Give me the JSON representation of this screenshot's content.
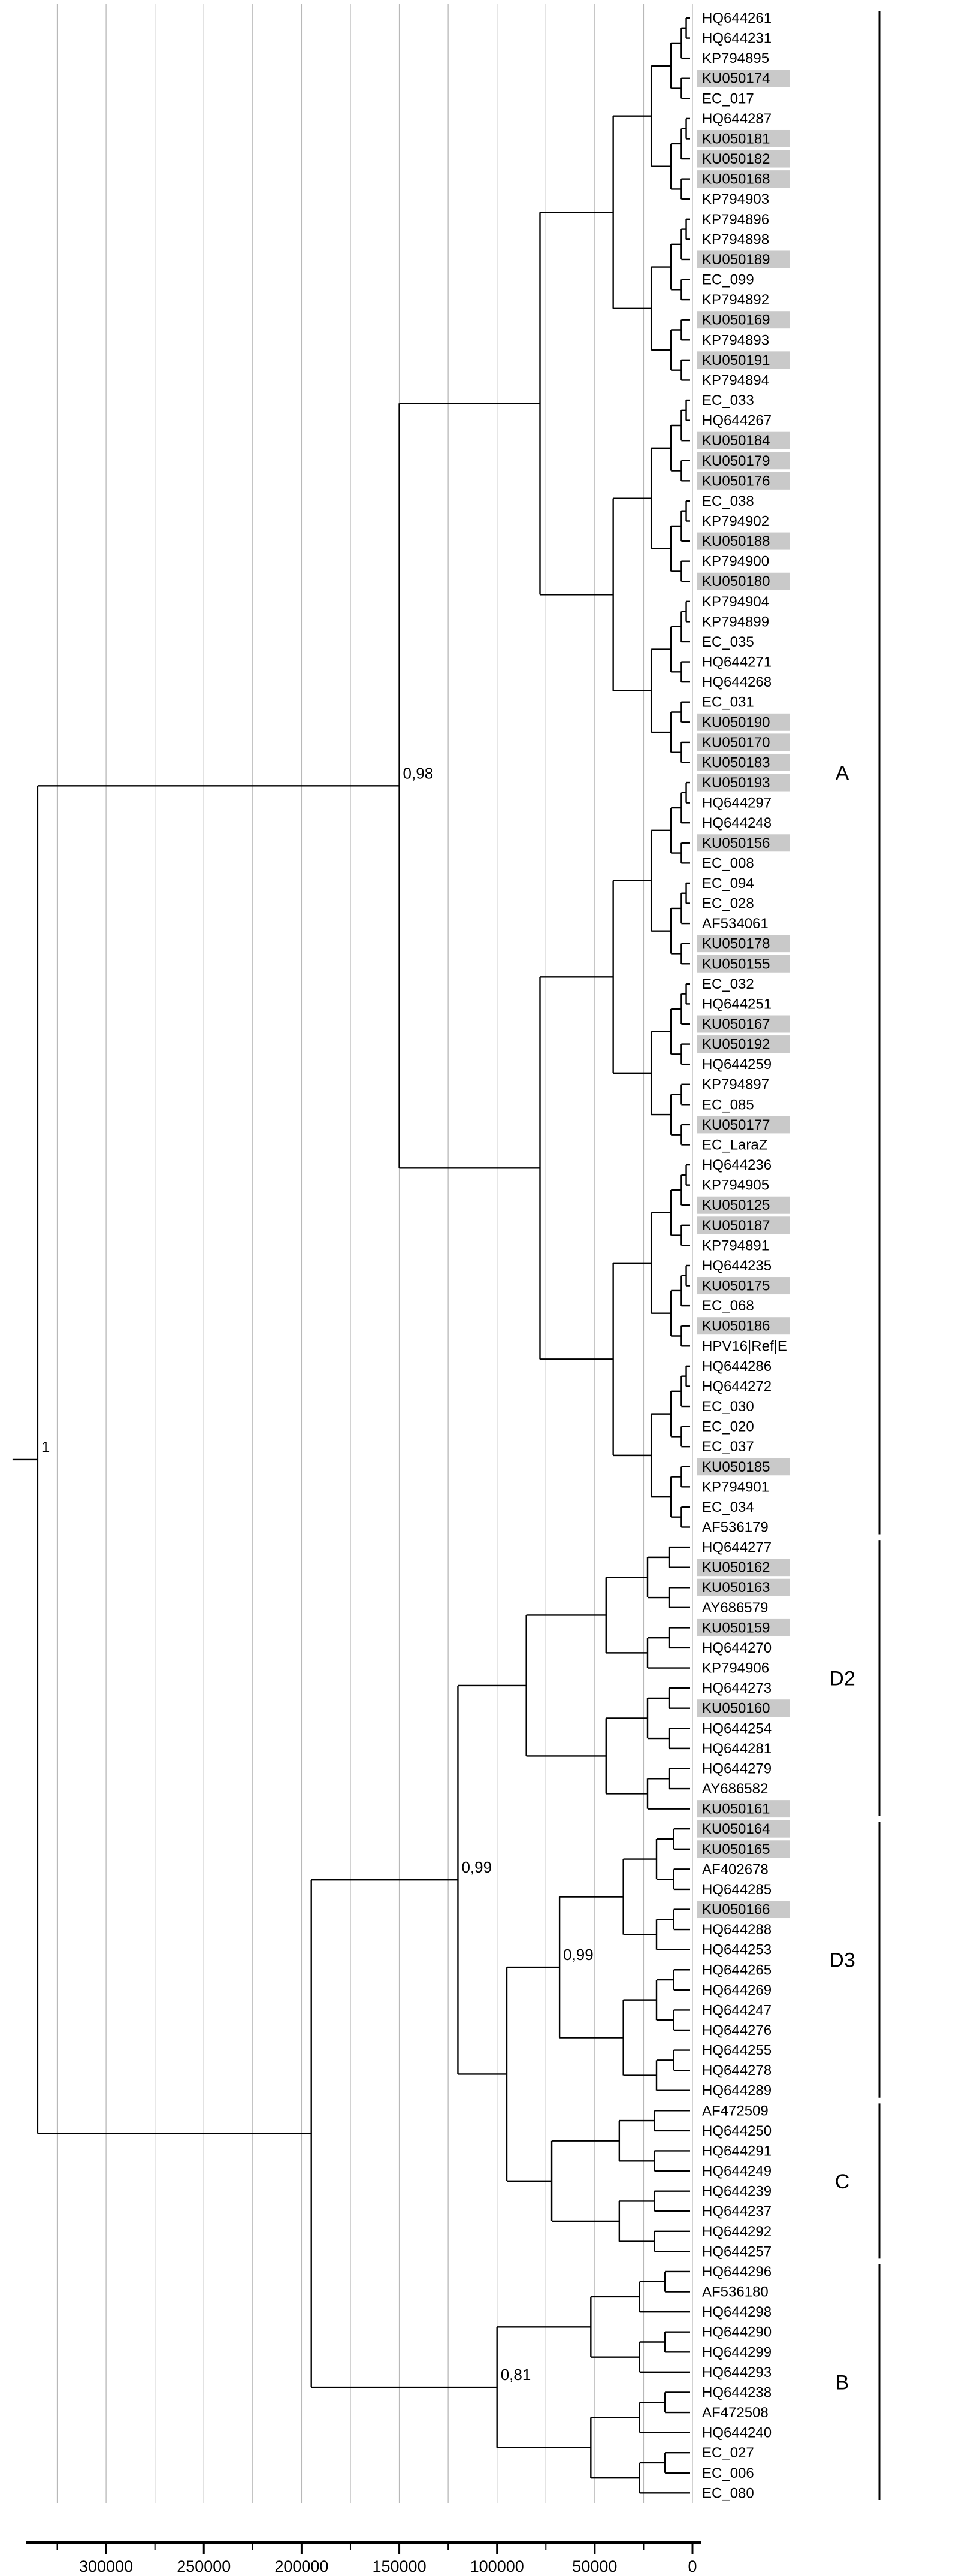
{
  "figure": {
    "type": "phylogenetic_tree",
    "description": "UPGMA/NJ style dendrogram of HPV16 variant sequences with clade groups",
    "colors": {
      "branch": "#000000",
      "gridline": "#b8b8b8",
      "highlight": "#c9c9c9",
      "bracket": "#000000"
    }
  },
  "taxa": [
    {
      "label": "HQ644261",
      "hl": false
    },
    {
      "label": "HQ644231",
      "hl": false
    },
    {
      "label": "KP794895",
      "hl": false
    },
    {
      "label": "KU050174",
      "hl": true
    },
    {
      "label": "EC_017",
      "hl": false
    },
    {
      "label": "HQ644287",
      "hl": false
    },
    {
      "label": "KU050181",
      "hl": true
    },
    {
      "label": "KU050182",
      "hl": true
    },
    {
      "label": "KU050168",
      "hl": true
    },
    {
      "label": "KP794903",
      "hl": false
    },
    {
      "label": "KP794896",
      "hl": false
    },
    {
      "label": "KP794898",
      "hl": false
    },
    {
      "label": "KU050189",
      "hl": true
    },
    {
      "label": "EC_099",
      "hl": false
    },
    {
      "label": "KP794892",
      "hl": false
    },
    {
      "label": "KU050169",
      "hl": true
    },
    {
      "label": "KP794893",
      "hl": false
    },
    {
      "label": "KU050191",
      "hl": true
    },
    {
      "label": "KP794894",
      "hl": false
    },
    {
      "label": "EC_033",
      "hl": false
    },
    {
      "label": "HQ644267",
      "hl": false
    },
    {
      "label": "KU050184",
      "hl": true
    },
    {
      "label": "KU050179",
      "hl": true
    },
    {
      "label": "KU050176",
      "hl": true
    },
    {
      "label": "EC_038",
      "hl": false
    },
    {
      "label": "KP794902",
      "hl": false
    },
    {
      "label": "KU050188",
      "hl": true
    },
    {
      "label": "KP794900",
      "hl": false
    },
    {
      "label": "KU050180",
      "hl": true
    },
    {
      "label": "KP794904",
      "hl": false
    },
    {
      "label": "KP794899",
      "hl": false
    },
    {
      "label": "EC_035",
      "hl": false
    },
    {
      "label": "HQ644271",
      "hl": false
    },
    {
      "label": "HQ644268",
      "hl": false
    },
    {
      "label": "EC_031",
      "hl": false
    },
    {
      "label": "KU050190",
      "hl": true
    },
    {
      "label": "KU050170",
      "hl": true
    },
    {
      "label": "KU050183",
      "hl": true
    },
    {
      "label": "KU050193",
      "hl": true
    },
    {
      "label": "HQ644297",
      "hl": false
    },
    {
      "label": "HQ644248",
      "hl": false
    },
    {
      "label": "KU050156",
      "hl": true
    },
    {
      "label": "EC_008",
      "hl": false
    },
    {
      "label": "EC_094",
      "hl": false
    },
    {
      "label": "EC_028",
      "hl": false
    },
    {
      "label": "AF534061",
      "hl": false
    },
    {
      "label": "KU050178",
      "hl": true
    },
    {
      "label": "KU050155",
      "hl": true
    },
    {
      "label": "EC_032",
      "hl": false
    },
    {
      "label": "HQ644251",
      "hl": false
    },
    {
      "label": "KU050167",
      "hl": true
    },
    {
      "label": "KU050192",
      "hl": true
    },
    {
      "label": "HQ644259",
      "hl": false
    },
    {
      "label": "KP794897",
      "hl": false
    },
    {
      "label": "EC_085",
      "hl": false
    },
    {
      "label": "KU050177",
      "hl": true
    },
    {
      "label": "EC_LaraZ",
      "hl": false
    },
    {
      "label": "HQ644236",
      "hl": false
    },
    {
      "label": "KP794905",
      "hl": false
    },
    {
      "label": "KU050125",
      "hl": true
    },
    {
      "label": "KU050187",
      "hl": true
    },
    {
      "label": "KP794891",
      "hl": false
    },
    {
      "label": "HQ644235",
      "hl": false
    },
    {
      "label": "KU050175",
      "hl": true
    },
    {
      "label": "EC_068",
      "hl": false
    },
    {
      "label": "KU050186",
      "hl": true
    },
    {
      "label": "HPV16|Ref|E",
      "hl": false
    },
    {
      "label": "HQ644286",
      "hl": false
    },
    {
      "label": "HQ644272",
      "hl": false
    },
    {
      "label": "EC_030",
      "hl": false
    },
    {
      "label": "EC_020",
      "hl": false
    },
    {
      "label": "EC_037",
      "hl": false
    },
    {
      "label": "KU050185",
      "hl": true
    },
    {
      "label": "KP794901",
      "hl": false
    },
    {
      "label": "EC_034",
      "hl": false
    },
    {
      "label": "AF536179",
      "hl": false
    },
    {
      "label": "HQ644277",
      "hl": false
    },
    {
      "label": "KU050162",
      "hl": true
    },
    {
      "label": "KU050163",
      "hl": true
    },
    {
      "label": "AY686579",
      "hl": false
    },
    {
      "label": "KU050159",
      "hl": true
    },
    {
      "label": "HQ644270",
      "hl": false
    },
    {
      "label": "KP794906",
      "hl": false
    },
    {
      "label": "HQ644273",
      "hl": false
    },
    {
      "label": "KU050160",
      "hl": true
    },
    {
      "label": "HQ644254",
      "hl": false
    },
    {
      "label": "HQ644281",
      "hl": false
    },
    {
      "label": "HQ644279",
      "hl": false
    },
    {
      "label": "AY686582",
      "hl": false
    },
    {
      "label": "KU050161",
      "hl": true
    },
    {
      "label": "KU050164",
      "hl": true
    },
    {
      "label": "KU050165",
      "hl": true
    },
    {
      "label": "AF402678",
      "hl": false
    },
    {
      "label": "HQ644285",
      "hl": false
    },
    {
      "label": "KU050166",
      "hl": true
    },
    {
      "label": "HQ644288",
      "hl": false
    },
    {
      "label": "HQ644253",
      "hl": false
    },
    {
      "label": "HQ644265",
      "hl": false
    },
    {
      "label": "HQ644269",
      "hl": false
    },
    {
      "label": "HQ644247",
      "hl": false
    },
    {
      "label": "HQ644276",
      "hl": false
    },
    {
      "label": "HQ644255",
      "hl": false
    },
    {
      "label": "HQ644278",
      "hl": false
    },
    {
      "label": "HQ644289",
      "hl": false
    },
    {
      "label": "AF472509",
      "hl": false
    },
    {
      "label": "HQ644250",
      "hl": false
    },
    {
      "label": "HQ644291",
      "hl": false
    },
    {
      "label": "HQ644249",
      "hl": false
    },
    {
      "label": "HQ644239",
      "hl": false
    },
    {
      "label": "HQ644237",
      "hl": false
    },
    {
      "label": "HQ644292",
      "hl": false
    },
    {
      "label": "HQ644257",
      "hl": false
    },
    {
      "label": "HQ644296",
      "hl": false
    },
    {
      "label": "AF536180",
      "hl": false
    },
    {
      "label": "HQ644298",
      "hl": false
    },
    {
      "label": "HQ644290",
      "hl": false
    },
    {
      "label": "HQ644299",
      "hl": false
    },
    {
      "label": "HQ644293",
      "hl": false
    },
    {
      "label": "HQ644238",
      "hl": false
    },
    {
      "label": "AF472508",
      "hl": false
    },
    {
      "label": "HQ644240",
      "hl": false
    },
    {
      "label": "EC_027",
      "hl": false
    },
    {
      "label": "EC_006",
      "hl": false
    },
    {
      "label": "EC_080",
      "hl": false
    }
  ],
  "clades": [
    {
      "name": "A",
      "start": 0,
      "end": 75
    },
    {
      "name": "D2",
      "start": 76,
      "end": 89
    },
    {
      "name": "D3",
      "start": 90,
      "end": 103
    },
    {
      "name": "C",
      "start": 104,
      "end": 111
    },
    {
      "name": "B",
      "start": 112,
      "end": 123
    }
  ],
  "tree": {
    "depth": 335000,
    "support": "1",
    "children": [
      {
        "depth": 150000,
        "support": "0,98",
        "clade": "A"
      },
      {
        "depth": 195000,
        "children": [
          {
            "depth": 120000,
            "support": "0,99",
            "children": [
              {
                "depth": 85000,
                "clade": "D2"
              },
              {
                "depth": 95000,
                "children": [
                  {
                    "depth": 68000,
                    "support": "0,99",
                    "clade": "D3"
                  },
                  {
                    "depth": 72000,
                    "clade": "C"
                  }
                ]
              }
            ]
          },
          {
            "depth": 100000,
            "support": "0,81",
            "clade": "B"
          }
        ]
      }
    ]
  },
  "supports": [
    "1",
    "0,98",
    "0,99",
    "0,99",
    "0,81"
  ],
  "axis": {
    "tick_labels": [
      "300000",
      "250000",
      "200000",
      "150000",
      "100000",
      "50000",
      "0"
    ],
    "tick_values": [
      300000,
      250000,
      200000,
      150000,
      100000,
      50000,
      0
    ],
    "minor_step": 25000,
    "gridline_max": 325000,
    "bar_max": 341000
  }
}
